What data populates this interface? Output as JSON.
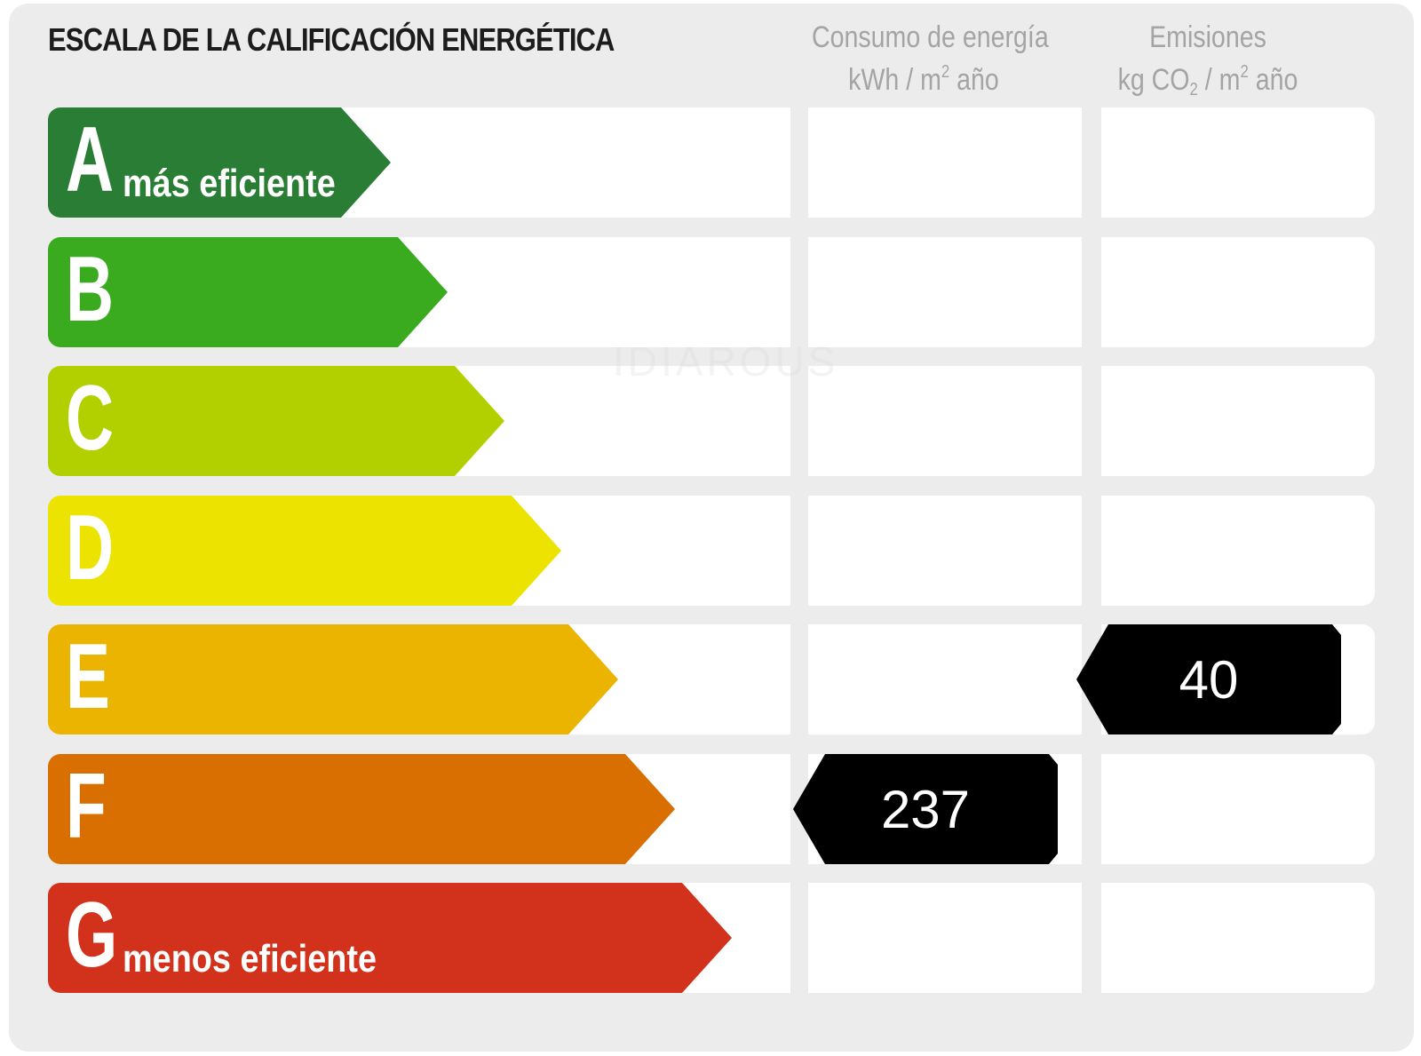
{
  "title": "ESCALA DE LA CALIFICACIÓN ENERGÉTICA",
  "consumption_header": {
    "line1": "Consumo de energía",
    "line2_prefix": "kWh / m",
    "line2_sup": "2",
    "line2_suffix": " año"
  },
  "emissions_header": {
    "line1": "Emisiones",
    "line2_prefix": "kg CO",
    "line2_sub": "2",
    "line2_mid": " / m",
    "line2_sup": "2",
    "line2_suffix": " año"
  },
  "rows": [
    {
      "letter": "A",
      "sub": "más eficiente",
      "color": "#2a7d34"
    },
    {
      "letter": "B",
      "sub": "",
      "color": "#3aab1e"
    },
    {
      "letter": "C",
      "sub": "",
      "color": "#b2d000"
    },
    {
      "letter": "D",
      "sub": "",
      "color": "#ede300"
    },
    {
      "letter": "E",
      "sub": "",
      "color": "#eab400"
    },
    {
      "letter": "F",
      "sub": "",
      "color": "#d86f00"
    },
    {
      "letter": "G",
      "sub": "menos eficiente",
      "color": "#d2321c"
    }
  ],
  "rating": {
    "consumption": {
      "value": "237",
      "class": "F"
    },
    "emissions": {
      "value": "40",
      "class": "E"
    }
  },
  "watermark": "IDIAROUS"
}
